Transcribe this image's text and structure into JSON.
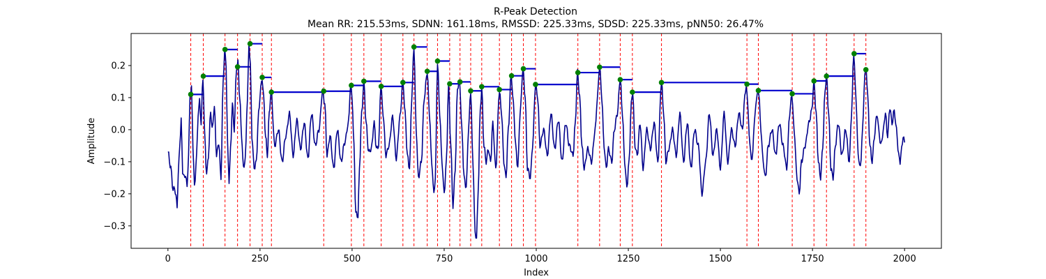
{
  "chart_data": {
    "type": "line",
    "title": "R-Peak Detection",
    "subtitle": "Mean RR: 215.53ms, SDNN: 161.18ms, RMSSD: 225.33ms, SDSD: 225.33ms, pNN50: 26.47%",
    "xlabel": "Index",
    "ylabel": "Amplitude",
    "xlim": [
      -100,
      2100
    ],
    "ylim": [
      -0.37,
      0.3
    ],
    "xticks": [
      0,
      250,
      500,
      750,
      1000,
      1250,
      1500,
      1750,
      2000
    ],
    "yticks": [
      -0.3,
      -0.2,
      -0.1,
      0.0,
      0.1,
      0.2
    ],
    "ytick_labels": [
      "−0.3",
      "−0.2",
      "−0.1",
      "0.0",
      "0.1",
      "0.2"
    ],
    "grid": false,
    "colors": {
      "signal": "#00008b",
      "peak_line": "#ff0000",
      "peak_marker": "#008000",
      "rr_segment": "#0000cd"
    },
    "signal_anchors": [
      [
        0,
        -0.07
      ],
      [
        8,
        -0.12
      ],
      [
        14,
        -0.19
      ],
      [
        18,
        -0.18
      ],
      [
        22,
        -0.21
      ],
      [
        25,
        -0.24
      ],
      [
        28,
        -0.14
      ],
      [
        32,
        -0.05
      ],
      [
        36,
        0.03
      ],
      [
        40,
        -0.13
      ],
      [
        44,
        -0.15
      ],
      [
        48,
        -0.14
      ],
      [
        52,
        -0.18
      ],
      [
        56,
        -0.08
      ],
      [
        60,
        0.11
      ],
      [
        64,
        0.13
      ],
      [
        68,
        -0.05
      ],
      [
        72,
        -0.18
      ],
      [
        78,
        -0.08
      ],
      [
        82,
        0.05
      ],
      [
        86,
        0.09
      ],
      [
        90,
        0.02
      ],
      [
        95,
        0.16
      ],
      [
        100,
        -0.02
      ],
      [
        105,
        -0.14
      ],
      [
        110,
        -0.08
      ],
      [
        116,
        0.06
      ],
      [
        120,
        0.0
      ],
      [
        126,
        0.07
      ],
      [
        132,
        -0.08
      ],
      [
        138,
        -0.04
      ],
      [
        144,
        -0.15
      ],
      [
        150,
        0.15
      ],
      [
        154,
        0.25
      ],
      [
        158,
        0.2
      ],
      [
        162,
        -0.05
      ],
      [
        166,
        -0.16
      ],
      [
        170,
        -0.06
      ],
      [
        175,
        0.08
      ],
      [
        180,
        0.0
      ],
      [
        186,
        0.19
      ],
      [
        190,
        0.21
      ],
      [
        195,
        0.1
      ],
      [
        200,
        -0.02
      ],
      [
        205,
        -0.12
      ],
      [
        210,
        -0.09
      ],
      [
        216,
        0.1
      ],
      [
        220,
        0.27
      ],
      [
        224,
        0.2
      ],
      [
        228,
        -0.02
      ],
      [
        234,
        -0.12
      ],
      [
        240,
        -0.1
      ],
      [
        246,
        0.05
      ],
      [
        252,
        0.13
      ],
      [
        256,
        0.16
      ],
      [
        260,
        0.1
      ],
      [
        265,
        -0.02
      ],
      [
        270,
        -0.08
      ],
      [
        275,
        0.05
      ],
      [
        280,
        0.12
      ],
      [
        290,
        -0.05
      ],
      [
        300,
        0.0
      ],
      [
        310,
        -0.1
      ],
      [
        320,
        -0.02
      ],
      [
        330,
        0.05
      ],
      [
        340,
        -0.08
      ],
      [
        350,
        0.03
      ],
      [
        360,
        -0.06
      ],
      [
        370,
        0.02
      ],
      [
        380,
        -0.09
      ],
      [
        390,
        0.05
      ],
      [
        400,
        -0.05
      ],
      [
        410,
        0.0
      ],
      [
        420,
        0.12
      ],
      [
        426,
        0.08
      ],
      [
        432,
        -0.08
      ],
      [
        440,
        -0.02
      ],
      [
        450,
        -0.12
      ],
      [
        460,
        0.0
      ],
      [
        470,
        -0.1
      ],
      [
        480,
        -0.04
      ],
      [
        490,
        0.02
      ],
      [
        496,
        0.14
      ],
      [
        500,
        0.1
      ],
      [
        505,
        -0.05
      ],
      [
        510,
        -0.26
      ],
      [
        516,
        -0.27
      ],
      [
        520,
        -0.12
      ],
      [
        526,
        0.05
      ],
      [
        532,
        0.15
      ],
      [
        538,
        0.02
      ],
      [
        545,
        -0.07
      ],
      [
        552,
        -0.06
      ],
      [
        560,
        0.02
      ],
      [
        566,
        -0.06
      ],
      [
        572,
        -0.05
      ],
      [
        578,
        0.14
      ],
      [
        584,
        0.05
      ],
      [
        592,
        -0.08
      ],
      [
        600,
        -0.05
      ],
      [
        610,
        0.04
      ],
      [
        620,
        -0.09
      ],
      [
        630,
        0.04
      ],
      [
        638,
        0.15
      ],
      [
        644,
        0.05
      ],
      [
        650,
        -0.08
      ],
      [
        656,
        -0.12
      ],
      [
        662,
        0.1
      ],
      [
        668,
        0.26
      ],
      [
        674,
        0.0
      ],
      [
        680,
        -0.15
      ],
      [
        688,
        -0.1
      ],
      [
        696,
        0.1
      ],
      [
        704,
        0.18
      ],
      [
        710,
        0.05
      ],
      [
        716,
        -0.1
      ],
      [
        722,
        -0.2
      ],
      [
        726,
        -0.15
      ],
      [
        732,
        0.21
      ],
      [
        738,
        0.05
      ],
      [
        744,
        -0.1
      ],
      [
        750,
        -0.2
      ],
      [
        756,
        -0.1
      ],
      [
        762,
        0.14
      ],
      [
        768,
        -0.05
      ],
      [
        774,
        -0.24
      ],
      [
        780,
        -0.12
      ],
      [
        786,
        0.13
      ],
      [
        792,
        0.15
      ],
      [
        798,
        0.0
      ],
      [
        804,
        -0.15
      ],
      [
        810,
        -0.18
      ],
      [
        816,
        0.0
      ],
      [
        822,
        0.12
      ],
      [
        828,
        -0.1
      ],
      [
        834,
        -0.32
      ],
      [
        838,
        -0.34
      ],
      [
        842,
        -0.2
      ],
      [
        848,
        0.06
      ],
      [
        852,
        0.13
      ],
      [
        858,
        -0.05
      ],
      [
        864,
        -0.1
      ],
      [
        870,
        -0.06
      ],
      [
        876,
        -0.1
      ],
      [
        882,
        0.02
      ],
      [
        890,
        -0.12
      ],
      [
        900,
        0.12
      ],
      [
        906,
        0.05
      ],
      [
        912,
        -0.1
      ],
      [
        918,
        -0.15
      ],
      [
        924,
        0.0
      ],
      [
        932,
        0.17
      ],
      [
        938,
        0.08
      ],
      [
        944,
        -0.05
      ],
      [
        950,
        -0.12
      ],
      [
        956,
        0.05
      ],
      [
        964,
        0.19
      ],
      [
        970,
        0.1
      ],
      [
        976,
        -0.12
      ],
      [
        984,
        -0.15
      ],
      [
        990,
        -0.05
      ],
      [
        998,
        0.14
      ],
      [
        1004,
        0.1
      ],
      [
        1010,
        -0.05
      ],
      [
        1020,
        0.0
      ],
      [
        1030,
        -0.08
      ],
      [
        1040,
        0.05
      ],
      [
        1050,
        -0.06
      ],
      [
        1060,
        0.03
      ],
      [
        1070,
        -0.1
      ],
      [
        1080,
        0.02
      ],
      [
        1090,
        -0.05
      ],
      [
        1100,
        -0.08
      ],
      [
        1106,
        0.02
      ],
      [
        1112,
        0.18
      ],
      [
        1118,
        0.1
      ],
      [
        1124,
        -0.05
      ],
      [
        1130,
        -0.12
      ],
      [
        1140,
        -0.06
      ],
      [
        1150,
        -0.1
      ],
      [
        1160,
        0.0
      ],
      [
        1166,
        0.1
      ],
      [
        1172,
        0.2
      ],
      [
        1178,
        0.1
      ],
      [
        1184,
        -0.05
      ],
      [
        1190,
        -0.12
      ],
      [
        1196,
        -0.06
      ],
      [
        1205,
        -0.1
      ],
      [
        1212,
        0.0
      ],
      [
        1220,
        0.05
      ],
      [
        1228,
        0.16
      ],
      [
        1234,
        0.05
      ],
      [
        1240,
        -0.1
      ],
      [
        1246,
        -0.18
      ],
      [
        1252,
        -0.1
      ],
      [
        1258,
        0.08
      ],
      [
        1262,
        0.12
      ],
      [
        1268,
        -0.05
      ],
      [
        1274,
        -0.08
      ],
      [
        1282,
        0.02
      ],
      [
        1290,
        -0.12
      ],
      [
        1300,
        0.0
      ],
      [
        1310,
        -0.06
      ],
      [
        1320,
        0.02
      ],
      [
        1330,
        -0.1
      ],
      [
        1340,
        0.15
      ],
      [
        1346,
        0.05
      ],
      [
        1352,
        -0.1
      ],
      [
        1360,
        -0.06
      ],
      [
        1370,
        0.0
      ],
      [
        1380,
        -0.08
      ],
      [
        1390,
        0.05
      ],
      [
        1400,
        -0.1
      ],
      [
        1410,
        0.02
      ],
      [
        1420,
        -0.12
      ],
      [
        1430,
        0.0
      ],
      [
        1440,
        -0.05
      ],
      [
        1450,
        -0.2
      ],
      [
        1460,
        -0.1
      ],
      [
        1470,
        0.05
      ],
      [
        1480,
        -0.08
      ],
      [
        1490,
        0.0
      ],
      [
        1500,
        -0.12
      ],
      [
        1510,
        0.05
      ],
      [
        1520,
        -0.1
      ],
      [
        1530,
        0.0
      ],
      [
        1540,
        -0.05
      ],
      [
        1550,
        0.05
      ],
      [
        1560,
        0.0
      ],
      [
        1566,
        0.1
      ],
      [
        1570,
        0.14
      ],
      [
        1574,
        0.08
      ],
      [
        1580,
        -0.05
      ],
      [
        1586,
        -0.1
      ],
      [
        1592,
        0.02
      ],
      [
        1598,
        0.1
      ],
      [
        1604,
        0.12
      ],
      [
        1610,
        0.0
      ],
      [
        1616,
        -0.1
      ],
      [
        1622,
        -0.15
      ],
      [
        1630,
        -0.05
      ],
      [
        1640,
        0.0
      ],
      [
        1650,
        -0.08
      ],
      [
        1660,
        0.02
      ],
      [
        1670,
        -0.05
      ],
      [
        1680,
        -0.12
      ],
      [
        1688,
        0.05
      ],
      [
        1694,
        0.11
      ],
      [
        1700,
        0.0
      ],
      [
        1708,
        -0.15
      ],
      [
        1714,
        -0.2
      ],
      [
        1720,
        -0.1
      ],
      [
        1730,
        -0.05
      ],
      [
        1740,
        0.02
      ],
      [
        1748,
        0.06
      ],
      [
        1754,
        0.15
      ],
      [
        1760,
        0.05
      ],
      [
        1766,
        -0.1
      ],
      [
        1772,
        -0.15
      ],
      [
        1778,
        -0.05
      ],
      [
        1784,
        0.12
      ],
      [
        1788,
        0.17
      ],
      [
        1794,
        0.05
      ],
      [
        1800,
        -0.12
      ],
      [
        1806,
        -0.15
      ],
      [
        1812,
        -0.05
      ],
      [
        1820,
        0.02
      ],
      [
        1830,
        -0.08
      ],
      [
        1840,
        0.0
      ],
      [
        1850,
        -0.1
      ],
      [
        1856,
        0.05
      ],
      [
        1862,
        0.24
      ],
      [
        1868,
        0.1
      ],
      [
        1874,
        -0.08
      ],
      [
        1880,
        -0.12
      ],
      [
        1886,
        0.0
      ],
      [
        1892,
        0.17
      ],
      [
        1896,
        0.19
      ],
      [
        1900,
        0.1
      ],
      [
        1906,
        -0.05
      ],
      [
        1912,
        -0.1
      ],
      [
        1918,
        -0.02
      ],
      [
        1925,
        0.05
      ],
      [
        1930,
        0.0
      ],
      [
        1935,
        -0.05
      ],
      [
        1940,
        -0.02
      ],
      [
        1948,
        0.05
      ],
      [
        1954,
        -0.02
      ],
      [
        1960,
        0.07
      ],
      [
        1966,
        0.02
      ],
      [
        1972,
        0.06
      ],
      [
        1978,
        0.0
      ],
      [
        1984,
        -0.08
      ],
      [
        1988,
        -0.1
      ],
      [
        1992,
        -0.06
      ],
      [
        1996,
        -0.02
      ],
      [
        2000,
        -0.04
      ]
    ],
    "peaks": [
      [
        62,
        0.11
      ],
      [
        96,
        0.167
      ],
      [
        155,
        0.25
      ],
      [
        189,
        0.196
      ],
      [
        223,
        0.268
      ],
      [
        256,
        0.163
      ],
      [
        281,
        0.117
      ],
      [
        423,
        0.12
      ],
      [
        498,
        0.138
      ],
      [
        532,
        0.151
      ],
      [
        579,
        0.135
      ],
      [
        638,
        0.147
      ],
      [
        668,
        0.258
      ],
      [
        704,
        0.182
      ],
      [
        732,
        0.214
      ],
      [
        765,
        0.143
      ],
      [
        793,
        0.149
      ],
      [
        822,
        0.121
      ],
      [
        852,
        0.134
      ],
      [
        900,
        0.125
      ],
      [
        933,
        0.168
      ],
      [
        965,
        0.19
      ],
      [
        998,
        0.141
      ],
      [
        1113,
        0.178
      ],
      [
        1172,
        0.195
      ],
      [
        1228,
        0.156
      ],
      [
        1261,
        0.117
      ],
      [
        1340,
        0.147
      ],
      [
        1572,
        0.142
      ],
      [
        1603,
        0.122
      ],
      [
        1695,
        0.112
      ],
      [
        1754,
        0.152
      ],
      [
        1788,
        0.167
      ],
      [
        1863,
        0.237
      ],
      [
        1895,
        0.187
      ]
    ]
  }
}
